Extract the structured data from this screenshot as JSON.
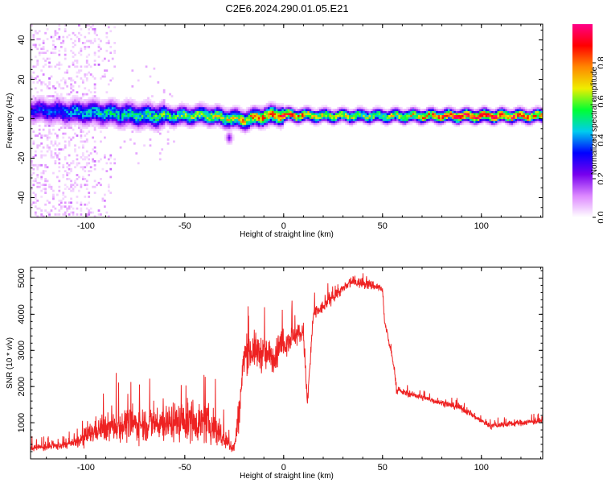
{
  "title": "C2E6.2024.290.01.05.E21",
  "colors": {
    "snr_line": "#ee2222",
    "colormap": [
      "#ffffff",
      "#dd88ff",
      "#7700ee",
      "#0000ff",
      "#00ccee",
      "#00ff33",
      "#eeee00",
      "#ff8800",
      "#ff0000",
      "#ff0088"
    ]
  },
  "chart_data": [
    {
      "type": "heatmap",
      "xlabel": "Height of straight line (km)",
      "ylabel": "Frequency (Hz)",
      "xlim": [
        -128,
        131
      ],
      "ylim": [
        -50,
        48
      ],
      "xticks": [
        -100,
        -50,
        0,
        50,
        100
      ],
      "xtick_labels": [
        "-100",
        "-50",
        "0",
        "50",
        "100"
      ],
      "yticks": [
        -40,
        -20,
        0,
        20,
        40
      ],
      "ytick_labels": [
        "-40",
        "-20",
        "0",
        "20",
        "40"
      ],
      "colorbar": {
        "label": "Normalized spectral amplitude",
        "range": [
          0,
          1
        ],
        "ticks": [
          0.0,
          0.2,
          0.4,
          0.6,
          0.8
        ],
        "tick_labels": [
          "0.0",
          "0.2",
          "0.4",
          "0.6",
          "0.8"
        ]
      },
      "band_center_hz": [
        [
          -128,
          4
        ],
        [
          -110,
          3
        ],
        [
          -90,
          2.5
        ],
        [
          -70,
          1
        ],
        [
          -50,
          1
        ],
        [
          -40,
          1.5
        ],
        [
          -30,
          0
        ],
        [
          -20,
          -1
        ],
        [
          -10,
          1
        ],
        [
          0,
          1.5
        ],
        [
          20,
          1
        ],
        [
          50,
          1
        ],
        [
          100,
          1
        ],
        [
          131,
          1
        ]
      ],
      "band_peak_amplitude": [
        [
          -128,
          0.3
        ],
        [
          -100,
          0.45
        ],
        [
          -70,
          0.5
        ],
        [
          -40,
          0.6
        ],
        [
          -20,
          0.7
        ],
        [
          0,
          0.85
        ],
        [
          20,
          0.65
        ],
        [
          50,
          0.6
        ],
        [
          80,
          0.8
        ],
        [
          100,
          0.9
        ],
        [
          131,
          0.75
        ]
      ],
      "spot_hz": [
        [
          -28,
          -10
        ]
      ],
      "grid": false
    },
    {
      "type": "line",
      "xlabel": "Height of straight line (km)",
      "ylabel": "SNR (10 * v/v)",
      "xlim": [
        -128,
        131
      ],
      "ylim": [
        0,
        5300
      ],
      "xticks": [
        -100,
        -50,
        0,
        50,
        100
      ],
      "xtick_labels": [
        "-100",
        "-50",
        "0",
        "50",
        "100"
      ],
      "yticks": [
        1000,
        2000,
        3000,
        4000,
        5000
      ],
      "ytick_labels": [
        "1000",
        "2000",
        "3000",
        "4000",
        "5000"
      ],
      "grid": false,
      "series": [
        {
          "x": [
            -128,
            -115,
            -105,
            -100,
            -95,
            -80,
            -60,
            -45,
            -35,
            -30,
            -25,
            -22,
            -20,
            -15,
            -10,
            -5,
            0,
            5,
            10,
            12,
            15,
            20,
            25,
            30,
            35,
            40,
            45,
            50,
            51,
            53,
            56,
            57,
            60,
            70,
            80,
            90,
            100,
            105,
            110,
            120,
            131
          ],
          "y": [
            300,
            350,
            450,
            600,
            800,
            950,
            1000,
            1050,
            900,
            500,
            300,
            1500,
            2900,
            3000,
            2900,
            2800,
            3200,
            3400,
            3500,
            1500,
            4000,
            4200,
            4500,
            4700,
            4900,
            4850,
            4800,
            4700,
            3800,
            3300,
            2500,
            1900,
            1850,
            1700,
            1550,
            1400,
            1050,
            900,
            950,
            1000,
            1050
          ],
          "noise": [
            200,
            200,
            250,
            500,
            600,
            800,
            900,
            1000,
            900,
            500,
            300,
            1000,
            900,
            900,
            900,
            800,
            700,
            600,
            500,
            500,
            400,
            300,
            300,
            250,
            250,
            250,
            250,
            200,
            200,
            150,
            150,
            150,
            150,
            150,
            150,
            150,
            150,
            150,
            150,
            150,
            150
          ]
        }
      ]
    }
  ]
}
